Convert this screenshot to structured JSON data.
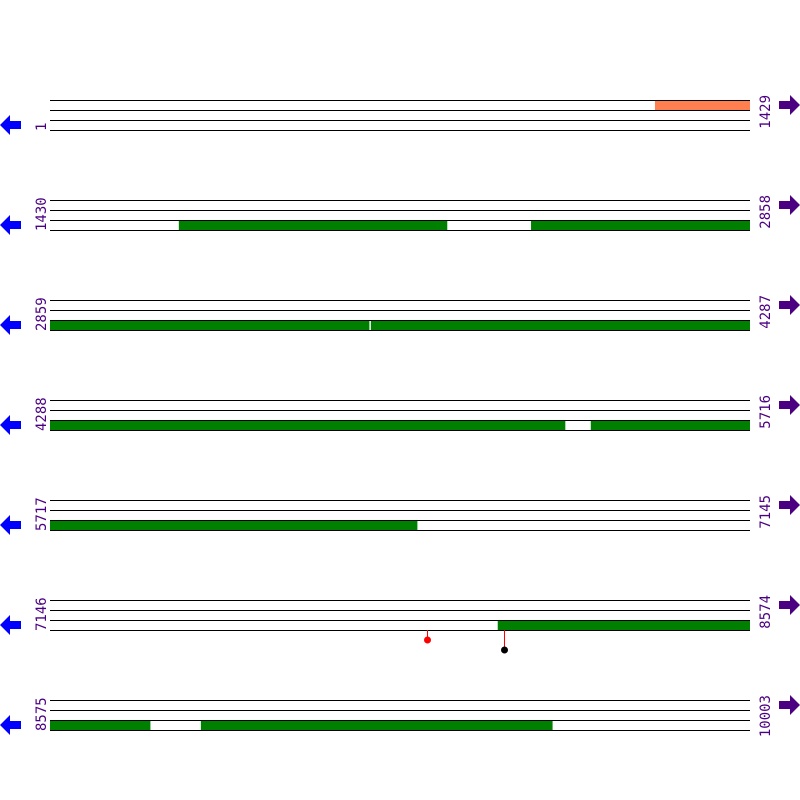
{
  "colors": {
    "track_line": "#000000",
    "feature_green": "#008000",
    "feature_orange": "#ff7f50",
    "label": "#4b0082",
    "reverse_arrow": "#0000ff",
    "forward_arrow": "#4b0082",
    "marker_red": "#ff0000",
    "marker_black": "#000000",
    "stem": "#ff0000"
  },
  "rows": [
    {
      "start": "1",
      "end": "1429",
      "features": [
        {
          "from": 1236,
          "to": 1429,
          "strand": "top",
          "color": "orange"
        }
      ],
      "markers": []
    },
    {
      "start": "1430",
      "end": "2858",
      "features": [
        {
          "from": 1693,
          "to": 2240,
          "strand": "bottom",
          "color": "green"
        },
        {
          "from": 2412,
          "to": 2858,
          "strand": "bottom",
          "color": "green"
        }
      ],
      "markers": []
    },
    {
      "start": "2859",
      "end": "4287",
      "features": [
        {
          "from": 2859,
          "to": 3510,
          "strand": "bottom",
          "color": "green"
        },
        {
          "from": 3514,
          "to": 4287,
          "strand": "bottom",
          "color": "green"
        }
      ],
      "markers": []
    },
    {
      "start": "4288",
      "end": "5716",
      "features": [
        {
          "from": 4288,
          "to": 5339,
          "strand": "bottom",
          "color": "green"
        },
        {
          "from": 5392,
          "to": 5716,
          "strand": "bottom",
          "color": "green"
        }
      ],
      "markers": []
    },
    {
      "start": "5717",
      "end": "7145",
      "features": [
        {
          "from": 5717,
          "to": 6466,
          "strand": "bottom",
          "color": "green"
        }
      ],
      "markers": []
    },
    {
      "start": "7146",
      "end": "8574",
      "features": [
        {
          "from": 8060,
          "to": 8574,
          "strand": "bottom",
          "color": "green"
        }
      ],
      "markers": [
        {
          "pos": 7915,
          "color": "red",
          "level": 1
        },
        {
          "pos": 8073,
          "color": "black",
          "level": 2
        }
      ]
    },
    {
      "start": "8575",
      "end": "10003",
      "features": [
        {
          "from": 8575,
          "to": 8779,
          "strand": "bottom",
          "color": "green"
        },
        {
          "from": 8883,
          "to": 9600,
          "strand": "bottom",
          "color": "green"
        }
      ],
      "markers": []
    }
  ],
  "icons": {
    "left": "arrow-left-icon",
    "right": "arrow-right-icon"
  }
}
